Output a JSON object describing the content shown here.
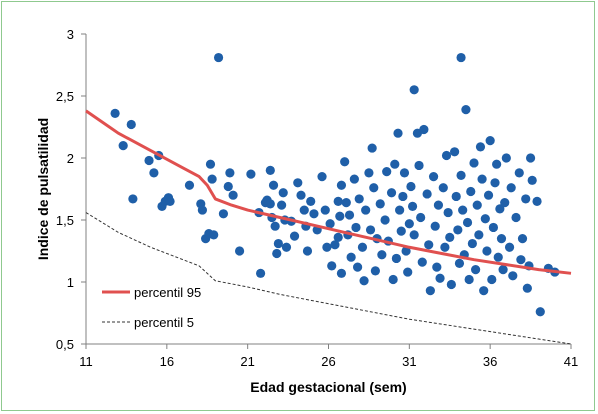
{
  "chart_data": {
    "type": "scatter",
    "xlabel": "Edad gestacional (sem)",
    "ylabel": "Indice de pulsatilidad",
    "xlim": [
      11,
      41
    ],
    "ylim": [
      0.5,
      3
    ],
    "x_ticks": [
      11,
      16,
      21,
      26,
      31,
      36,
      41
    ],
    "y_ticks": [
      0.5,
      1,
      1.5,
      2,
      2.5,
      3
    ],
    "x_tick_labels": [
      "11",
      "16",
      "21",
      "26",
      "31",
      "36",
      "41"
    ],
    "y_tick_labels": [
      "0,5",
      "1",
      "1,5",
      "2",
      "2,5",
      "3"
    ],
    "grid": false,
    "legend_position": "bottom-left",
    "colors": {
      "points": "#1f5fa8",
      "p95": "#e0504f",
      "p5": "#333333",
      "frame": "#8fc98f"
    },
    "series": [
      {
        "name": "percentil 95",
        "style": "solid",
        "x": [
          11,
          13,
          15,
          17,
          18,
          18.5,
          19,
          20,
          21,
          23,
          25,
          27,
          29,
          31,
          33,
          35,
          37,
          39,
          41
        ],
        "y": [
          2.38,
          2.2,
          2.06,
          1.92,
          1.85,
          1.78,
          1.67,
          1.62,
          1.58,
          1.52,
          1.46,
          1.4,
          1.34,
          1.28,
          1.23,
          1.18,
          1.14,
          1.1,
          1.07
        ]
      },
      {
        "name": "percentil 5",
        "style": "dashed",
        "x": [
          11,
          13,
          15,
          17,
          18,
          19,
          21,
          23,
          25,
          27,
          29,
          31,
          33,
          35,
          37,
          39,
          41
        ],
        "y": [
          1.56,
          1.4,
          1.28,
          1.18,
          1.13,
          1.01,
          0.96,
          0.9,
          0.85,
          0.8,
          0.75,
          0.7,
          0.66,
          0.62,
          0.58,
          0.54,
          0.5
        ]
      },
      {
        "name": "",
        "style": "points",
        "points": [
          [
            12.8,
            2.36
          ],
          [
            13.3,
            2.1
          ],
          [
            13.8,
            2.27
          ],
          [
            13.9,
            1.67
          ],
          [
            14.9,
            1.98
          ],
          [
            15.2,
            1.88
          ],
          [
            15.5,
            2.02
          ],
          [
            15.7,
            1.61
          ],
          [
            15.9,
            1.65
          ],
          [
            16.1,
            1.68
          ],
          [
            16.2,
            1.65
          ],
          [
            17.4,
            1.78
          ],
          [
            18.1,
            1.63
          ],
          [
            18.2,
            1.58
          ],
          [
            18.4,
            1.35
          ],
          [
            18.6,
            1.39
          ],
          [
            18.7,
            1.95
          ],
          [
            18.8,
            1.83
          ],
          [
            18.9,
            1.38
          ],
          [
            19.2,
            2.81
          ],
          [
            19.5,
            1.55
          ],
          [
            19.8,
            1.77
          ],
          [
            19.9,
            1.88
          ],
          [
            20.1,
            1.7
          ],
          [
            20.5,
            1.25
          ],
          [
            21.2,
            1.87
          ],
          [
            21.7,
            1.56
          ],
          [
            21.8,
            1.07
          ],
          [
            22.1,
            1.64
          ],
          [
            22.2,
            1.66
          ],
          [
            22.4,
            1.9
          ],
          [
            22.4,
            1.63
          ],
          [
            22.5,
            1.52
          ],
          [
            22.6,
            1.78
          ],
          [
            22.7,
            1.45
          ],
          [
            22.8,
            1.23
          ],
          [
            22.9,
            1.31
          ],
          [
            23.1,
            1.62
          ],
          [
            23.2,
            1.72
          ],
          [
            23.3,
            1.5
          ],
          [
            23.4,
            1.28
          ],
          [
            23.7,
            1.49
          ],
          [
            23.9,
            1.37
          ],
          [
            24.1,
            1.8
          ],
          [
            24.3,
            1.7
          ],
          [
            24.5,
            1.58
          ],
          [
            24.6,
            1.45
          ],
          [
            24.7,
            1.25
          ],
          [
            24.9,
            1.65
          ],
          [
            25.1,
            1.55
          ],
          [
            25.3,
            1.42
          ],
          [
            25.6,
            1.85
          ],
          [
            25.8,
            1.58
          ],
          [
            25.9,
            1.28
          ],
          [
            26.1,
            1.47
          ],
          [
            26.2,
            1.13
          ],
          [
            26.4,
            1.3
          ],
          [
            26.6,
            1.65
          ],
          [
            26.6,
            1.36
          ],
          [
            26.7,
            1.53
          ],
          [
            26.8,
            1.78
          ],
          [
            26.8,
            1.07
          ],
          [
            27.0,
            1.97
          ],
          [
            27.1,
            1.64
          ],
          [
            27.2,
            1.38
          ],
          [
            27.3,
            1.54
          ],
          [
            27.4,
            1.2
          ],
          [
            27.6,
            1.83
          ],
          [
            27.7,
            1.44
          ],
          [
            27.8,
            1.12
          ],
          [
            27.9,
            1.67
          ],
          [
            28.1,
            1.28
          ],
          [
            28.2,
            1.01
          ],
          [
            28.3,
            1.58
          ],
          [
            28.5,
            1.88
          ],
          [
            28.6,
            1.42
          ],
          [
            28.7,
            2.08
          ],
          [
            28.8,
            1.76
          ],
          [
            28.9,
            1.09
          ],
          [
            29.0,
            1.35
          ],
          [
            29.2,
            1.63
          ],
          [
            29.3,
            1.22
          ],
          [
            29.5,
            1.5
          ],
          [
            29.6,
            1.89
          ],
          [
            29.7,
            1.33
          ],
          [
            29.9,
            1.72
          ],
          [
            30.0,
            1.02
          ],
          [
            30.1,
            1.95
          ],
          [
            30.2,
            1.19
          ],
          [
            30.3,
            2.2
          ],
          [
            30.4,
            1.58
          ],
          [
            30.5,
            1.41
          ],
          [
            30.6,
            1.69
          ],
          [
            30.7,
            1.88
          ],
          [
            30.8,
            1.25
          ],
          [
            30.9,
            1.08
          ],
          [
            31.0,
            1.47
          ],
          [
            31.1,
            1.77
          ],
          [
            31.2,
            1.61
          ],
          [
            31.3,
            1.38
          ],
          [
            31.3,
            2.55
          ],
          [
            31.5,
            2.2
          ],
          [
            31.6,
            1.94
          ],
          [
            31.7,
            1.52
          ],
          [
            31.8,
            1.16
          ],
          [
            31.9,
            2.23
          ],
          [
            32.1,
            1.71
          ],
          [
            32.2,
            1.3
          ],
          [
            32.3,
            0.93
          ],
          [
            32.5,
            1.85
          ],
          [
            32.6,
            1.45
          ],
          [
            32.7,
            1.12
          ],
          [
            32.8,
            1.62
          ],
          [
            32.9,
            1.03
          ],
          [
            33.1,
            1.76
          ],
          [
            33.2,
            1.28
          ],
          [
            33.3,
            2.02
          ],
          [
            33.4,
            1.56
          ],
          [
            33.5,
            1.36
          ],
          [
            33.6,
            0.98
          ],
          [
            33.8,
            2.05
          ],
          [
            33.9,
            1.69
          ],
          [
            34.0,
            1.42
          ],
          [
            34.1,
            1.15
          ],
          [
            34.2,
            1.86
          ],
          [
            34.2,
            2.81
          ],
          [
            34.3,
            1.58
          ],
          [
            34.4,
            1.22
          ],
          [
            34.5,
            2.39
          ],
          [
            34.6,
            1.48
          ],
          [
            34.7,
            1.02
          ],
          [
            34.8,
            1.73
          ],
          [
            34.9,
            1.31
          ],
          [
            35.0,
            1.96
          ],
          [
            35.1,
            1.1
          ],
          [
            35.2,
            1.62
          ],
          [
            35.3,
            1.38
          ],
          [
            35.4,
            2.09
          ],
          [
            35.5,
            1.83
          ],
          [
            35.6,
            0.93
          ],
          [
            35.7,
            1.51
          ],
          [
            35.8,
            1.25
          ],
          [
            35.9,
            1.7
          ],
          [
            36.0,
            2.14
          ],
          [
            36.1,
            1.02
          ],
          [
            36.2,
            1.44
          ],
          [
            36.3,
            1.8
          ],
          [
            36.4,
            1.95
          ],
          [
            36.5,
            1.2
          ],
          [
            36.6,
            1.59
          ],
          [
            36.7,
            1.35
          ],
          [
            36.8,
            1.1
          ],
          [
            36.9,
            1.64
          ],
          [
            37.0,
            2.0
          ],
          [
            37.2,
            1.28
          ],
          [
            37.3,
            1.76
          ],
          [
            37.4,
            1.05
          ],
          [
            37.6,
            1.52
          ],
          [
            37.8,
            1.88
          ],
          [
            37.9,
            1.18
          ],
          [
            38.0,
            1.35
          ],
          [
            38.2,
            1.67
          ],
          [
            38.3,
            0.95
          ],
          [
            38.4,
            1.13
          ],
          [
            38.5,
            2.0
          ],
          [
            38.6,
            1.82
          ],
          [
            38.9,
            1.65
          ],
          [
            39.1,
            0.76
          ],
          [
            39.6,
            1.11
          ],
          [
            40.0,
            1.08
          ]
        ]
      }
    ]
  }
}
